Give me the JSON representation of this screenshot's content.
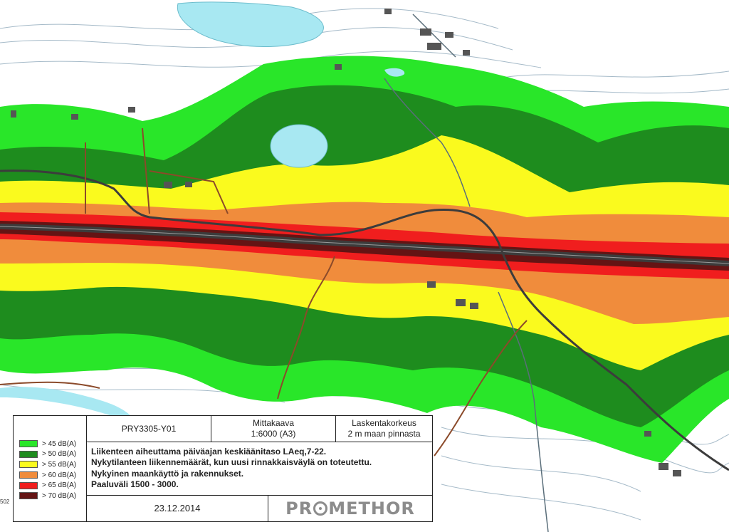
{
  "colors": {
    "water": "#a8e8f2",
    "base": "#ffffff",
    "contour": "#8fa9bb",
    "db45": "#29e629",
    "db50": "#1e8c1e",
    "db55": "#fafa1e",
    "db60": "#f08c3c",
    "db65": "#f01e1e",
    "db70": "#641414",
    "road": "#3c3c3c",
    "boundary": "#8b4a2a"
  },
  "legend": [
    {
      "label": "> 45 dB(A)",
      "color": "#29e629"
    },
    {
      "label": "> 50 dB(A)",
      "color": "#1e8c1e"
    },
    {
      "label": "> 55 dB(A)",
      "color": "#fafa1e"
    },
    {
      "label": "> 60 dB(A)",
      "color": "#f08c3c"
    },
    {
      "label": "> 65 dB(A)",
      "color": "#f01e1e"
    },
    {
      "label": "> 70 dB(A)",
      "color": "#641414"
    }
  ],
  "title_block": {
    "project_code": "PRY3305-Y01",
    "scale_label": "Mittakaava",
    "scale_value": "1:6000 (A3)",
    "height_label": "Laskentakorkeus",
    "height_value": "2 m maan pinnasta",
    "description": [
      "Liikenteen aiheuttama päiväajan keskiäänitaso LAeq,7-22.",
      "Nykytilanteen liikennemäärät, kun uusi rinnakkaisväylä on toteutettu.",
      "Nykyinen maankäyttö ja rakennukset.",
      "Paaluväli 1500 - 3000."
    ],
    "date": "23.12.2014",
    "logo_left": "PR",
    "logo_right": "METHOR"
  },
  "edge_label": "502"
}
